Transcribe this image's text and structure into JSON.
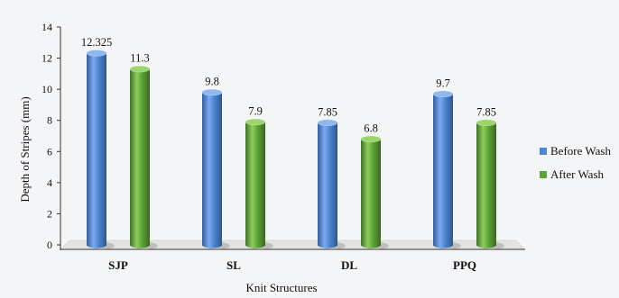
{
  "chart_data": {
    "type": "bar",
    "style": "3d-cylinder",
    "title": "",
    "xlabel": "Knit Structures",
    "ylabel": "Depth of Stripes (mm)",
    "ylim": [
      0,
      14
    ],
    "yticks": [
      0,
      2,
      4,
      6,
      8,
      10,
      12,
      14
    ],
    "grid": false,
    "legend_position": "right",
    "categories": [
      "SJP",
      "SL",
      "DL",
      "PPQ"
    ],
    "series": [
      {
        "name": "Before Wash",
        "color": "#4f86d1",
        "values": [
          12.325,
          9.8,
          7.85,
          9.7
        ],
        "labels": [
          "12.325",
          "9.8",
          "7.85",
          "9.7"
        ]
      },
      {
        "name": "After Wash",
        "color": "#5ea338",
        "values": [
          11.3,
          7.9,
          6.8,
          7.85
        ],
        "labels": [
          "11.3",
          "7.9",
          "6.8",
          "7.85"
        ]
      }
    ]
  }
}
